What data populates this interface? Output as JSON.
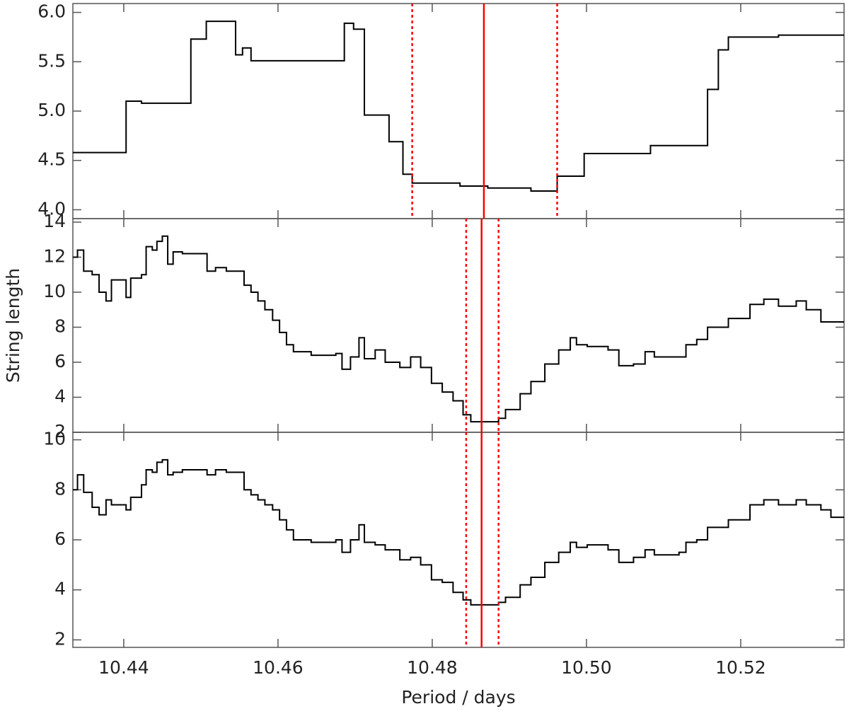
{
  "chart_data": [
    {
      "type": "step",
      "color": "#000000",
      "vline_color": "#ff0000",
      "x": [
        10.4334,
        10.4403,
        10.4423,
        10.4487,
        10.4507,
        10.4545,
        10.4554,
        10.4565,
        10.4686,
        10.4698,
        10.4712,
        10.4744,
        10.4762,
        10.4774,
        10.4836,
        10.4872,
        10.4928,
        10.4962,
        10.4997,
        10.5083,
        10.5157,
        10.5171,
        10.5184,
        10.5249
      ],
      "values": [
        4.58,
        5.1,
        5.08,
        5.73,
        5.91,
        5.57,
        5.64,
        5.51,
        5.89,
        5.83,
        4.96,
        4.69,
        4.36,
        4.27,
        4.24,
        4.22,
        4.19,
        4.34,
        4.57,
        4.65,
        5.22,
        5.62,
        5.75,
        5.77
      ],
      "xlim": [
        10.4334,
        10.5334
      ],
      "xticks": [
        10.44,
        10.46,
        10.48,
        {
          "value": 10.5,
          "label": "10.50"
        },
        10.52
      ],
      "ylim": [
        3.91,
        6.09
      ],
      "yticks": [
        {
          "value": 4,
          "label": "4.0"
        },
        4.5,
        {
          "value": 5,
          "label": "5.0"
        },
        5.5,
        {
          "value": 6,
          "label": "6.0"
        }
      ],
      "vlines": [
        {
          "value": 10.4774,
          "style": "dotted"
        },
        {
          "value": 10.4867,
          "style": "solid"
        },
        {
          "value": 10.4962,
          "style": "dotted"
        }
      ]
    },
    {
      "type": "step",
      "color": "#000000",
      "vline_color": "#ff0000",
      "ylabel": "String length",
      "x": [
        10.4334,
        10.434,
        10.4348,
        10.4359,
        10.4368,
        10.4377,
        10.4384,
        10.4403,
        10.4409,
        10.4423,
        10.4429,
        10.4437,
        10.4443,
        10.445,
        10.4457,
        10.4464,
        10.4476,
        10.4508,
        10.4519,
        10.4533,
        10.4556,
        10.4565,
        10.4574,
        10.4583,
        10.4593,
        10.4602,
        10.4611,
        10.462,
        10.4643,
        10.4675,
        10.4683,
        10.4694,
        10.4705,
        10.4712,
        10.4726,
        10.4739,
        10.4758,
        10.4772,
        10.4785,
        10.4799,
        10.4813,
        10.4827,
        10.484,
        10.485,
        10.4872,
        10.4886,
        10.4895,
        10.4914,
        10.4928,
        10.4946,
        10.4964,
        10.4979,
        10.4987,
        10.5001,
        10.5028,
        10.5042,
        10.5061,
        10.5076,
        10.5088,
        10.512,
        10.5129,
        10.5143,
        10.5157,
        10.5184,
        10.5212,
        10.523,
        10.5249,
        10.5272,
        10.5285,
        10.5304,
        10.5317
      ],
      "values": [
        12.0,
        12.4,
        11.2,
        11.0,
        10.0,
        9.5,
        10.7,
        9.7,
        10.8,
        11.0,
        12.6,
        12.4,
        12.9,
        13.2,
        11.6,
        12.3,
        12.2,
        11.2,
        11.4,
        11.2,
        10.4,
        10.0,
        9.5,
        9.0,
        8.4,
        7.7,
        7.0,
        6.6,
        6.4,
        6.5,
        5.6,
        6.3,
        7.4,
        6.2,
        6.7,
        6.0,
        5.7,
        6.3,
        5.7,
        4.8,
        4.3,
        3.8,
        3.0,
        2.6,
        2.6,
        2.8,
        3.3,
        4.2,
        4.9,
        5.9,
        6.7,
        7.4,
        7.0,
        6.9,
        6.7,
        5.8,
        5.9,
        6.6,
        6.3,
        6.3,
        7.0,
        7.3,
        8.0,
        8.5,
        9.3,
        9.6,
        9.2,
        9.5,
        9.0,
        8.3,
        8.3
      ],
      "xlim": [
        10.4334,
        10.5334
      ],
      "xticks": [
        10.44,
        10.46,
        10.48,
        {
          "value": 10.5,
          "label": "10.50"
        },
        10.52
      ],
      "ylim": [
        2,
        14.2
      ],
      "yticks": [
        2,
        4,
        6,
        8,
        10,
        12,
        14
      ],
      "vlines": [
        {
          "value": 10.4844,
          "style": "dotted"
        },
        {
          "value": 10.4864,
          "style": "solid"
        },
        {
          "value": 10.4886,
          "style": "dotted"
        }
      ]
    },
    {
      "type": "step",
      "color": "#000000",
      "vline_color": "#ff0000",
      "xlabel": "Period / days",
      "x": [
        10.4334,
        10.434,
        10.4348,
        10.4359,
        10.4368,
        10.4377,
        10.4384,
        10.4403,
        10.4409,
        10.4423,
        10.4429,
        10.4437,
        10.4443,
        10.445,
        10.4457,
        10.4464,
        10.4476,
        10.4508,
        10.4519,
        10.4533,
        10.4556,
        10.4565,
        10.4574,
        10.4583,
        10.4593,
        10.4602,
        10.4611,
        10.462,
        10.4643,
        10.4675,
        10.4683,
        10.4694,
        10.4705,
        10.4712,
        10.4726,
        10.4739,
        10.4758,
        10.4772,
        10.4785,
        10.4799,
        10.4813,
        10.4827,
        10.484,
        10.485,
        10.4872,
        10.4886,
        10.4895,
        10.4914,
        10.4928,
        10.4946,
        10.4964,
        10.4979,
        10.4987,
        10.5001,
        10.5028,
        10.5042,
        10.5061,
        10.5076,
        10.5088,
        10.512,
        10.5129,
        10.5143,
        10.5157,
        10.5184,
        10.5212,
        10.523,
        10.5249,
        10.5272,
        10.5285,
        10.5304,
        10.5317
      ],
      "values": [
        8.0,
        8.6,
        7.9,
        7.3,
        7.0,
        7.6,
        7.4,
        7.2,
        7.7,
        8.2,
        8.8,
        8.7,
        9.1,
        9.2,
        8.6,
        8.7,
        8.8,
        8.6,
        8.8,
        8.7,
        8.0,
        7.8,
        7.6,
        7.4,
        7.2,
        6.8,
        6.4,
        6.0,
        5.9,
        6.0,
        5.5,
        6.0,
        6.6,
        5.9,
        5.8,
        5.6,
        5.2,
        5.3,
        5.0,
        4.4,
        4.3,
        3.9,
        3.6,
        3.4,
        3.4,
        3.5,
        3.7,
        4.2,
        4.5,
        5.1,
        5.5,
        5.9,
        5.7,
        5.8,
        5.6,
        5.1,
        5.3,
        5.6,
        5.4,
        5.5,
        5.9,
        6.0,
        6.5,
        6.8,
        7.4,
        7.6,
        7.4,
        7.6,
        7.4,
        7.2,
        6.9
      ],
      "xlim": [
        10.4334,
        10.5334
      ],
      "xticks": [
        10.44,
        10.46,
        10.48,
        {
          "value": 10.5,
          "label": "10.50"
        },
        10.52
      ],
      "ylim": [
        1.7,
        10.3
      ],
      "yticks": [
        2,
        4,
        6,
        8,
        10
      ],
      "vlines": [
        {
          "value": 10.4844,
          "style": "dotted"
        },
        {
          "value": 10.4864,
          "style": "solid"
        },
        {
          "value": 10.4886,
          "style": "dotted"
        }
      ]
    }
  ]
}
